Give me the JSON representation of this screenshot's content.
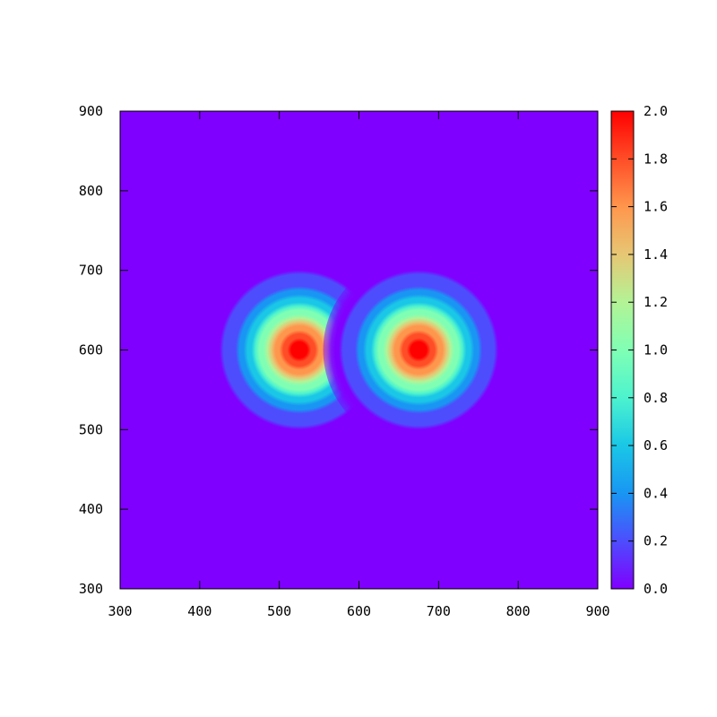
{
  "chart_data": {
    "type": "heatmap",
    "title": "",
    "xlabel": "",
    "ylabel": "",
    "xlim": [
      300,
      900
    ],
    "ylim": [
      300,
      900
    ],
    "x_ticks": [
      "300",
      "400",
      "500",
      "600",
      "700",
      "800",
      "900"
    ],
    "y_ticks": [
      "300",
      "400",
      "500",
      "600",
      "700",
      "800",
      "900"
    ],
    "colorbar": {
      "range": [
        0.0,
        2.0
      ],
      "ticks": [
        "0.0",
        "0.2",
        "0.4",
        "0.6",
        "0.8",
        "1.0",
        "1.2",
        "1.4",
        "1.6",
        "1.8",
        "2.0"
      ],
      "palette": [
        "#8000ff",
        "#4d4dfd",
        "#1996f3",
        "#1ac7e6",
        "#4df3ce",
        "#80ffb4",
        "#b3f396",
        "#e6c774",
        "#ff964d",
        "#ff4d27",
        "#ff0000"
      ]
    },
    "peaks": [
      {
        "x": 525,
        "y": 600,
        "value": 2.0,
        "sigma": 40
      },
      {
        "x": 675,
        "y": 600,
        "value": 2.0,
        "sigma": 40
      }
    ],
    "background_value": 0.0,
    "grid": false
  }
}
